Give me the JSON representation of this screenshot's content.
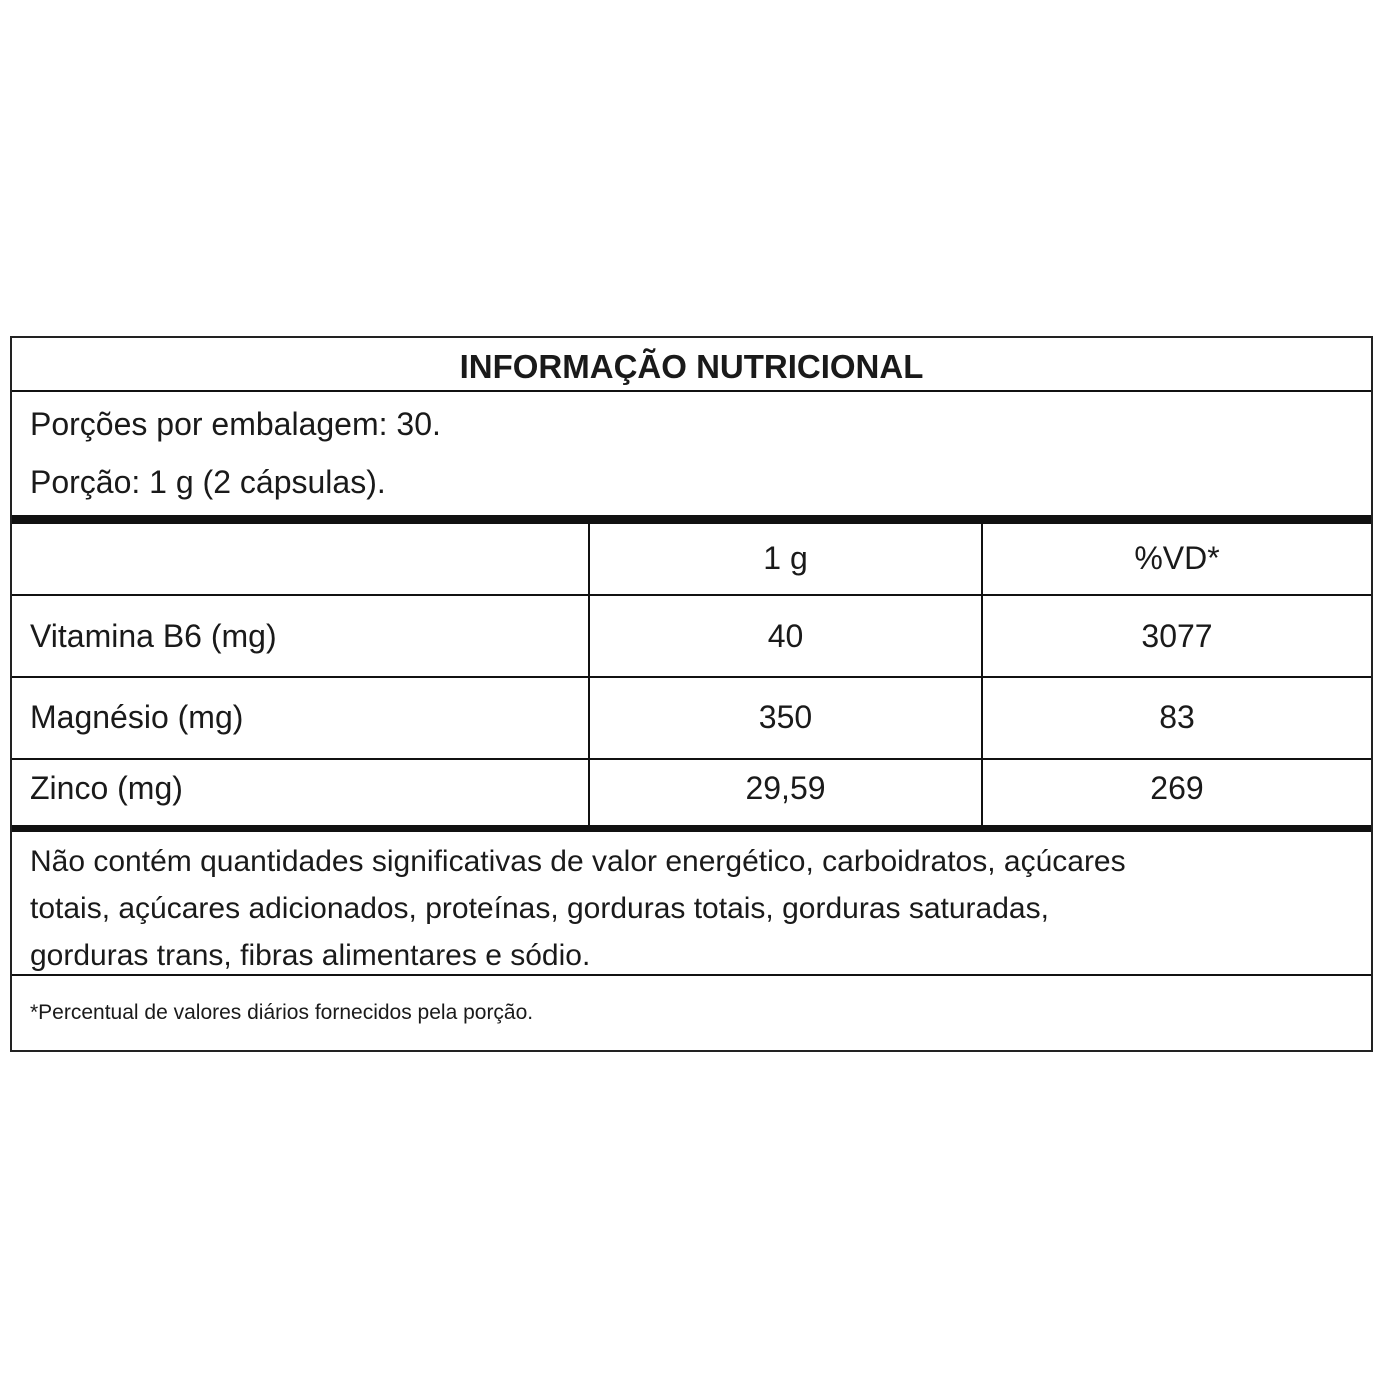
{
  "title": "INFORMAÇÃO NUTRICIONAL",
  "servings_per_package": "Porções por embalagem: 30.",
  "serving_size": "Porção: 1 g (2 cápsulas).",
  "columns": [
    "",
    "1 g",
    "%VD*"
  ],
  "rows": [
    {
      "nutrient": "Vitamina B6 (mg)",
      "amount": "40",
      "dv": "3077"
    },
    {
      "nutrient": "Magnésio (mg)",
      "amount": "350",
      "dv": "83"
    },
    {
      "nutrient": "Zinco (mg)",
      "amount": "29,59",
      "dv": "269"
    }
  ],
  "note_lines": [
    "Não contém quantidades significativas de valor energético, carboidratos, açúcares",
    "totais, açúcares adicionados, proteínas, gorduras totais, gorduras saturadas,",
    "gorduras trans, fibras alimentares e sódio."
  ],
  "footnote": "*Percentual de valores diários fornecidos pela porção."
}
